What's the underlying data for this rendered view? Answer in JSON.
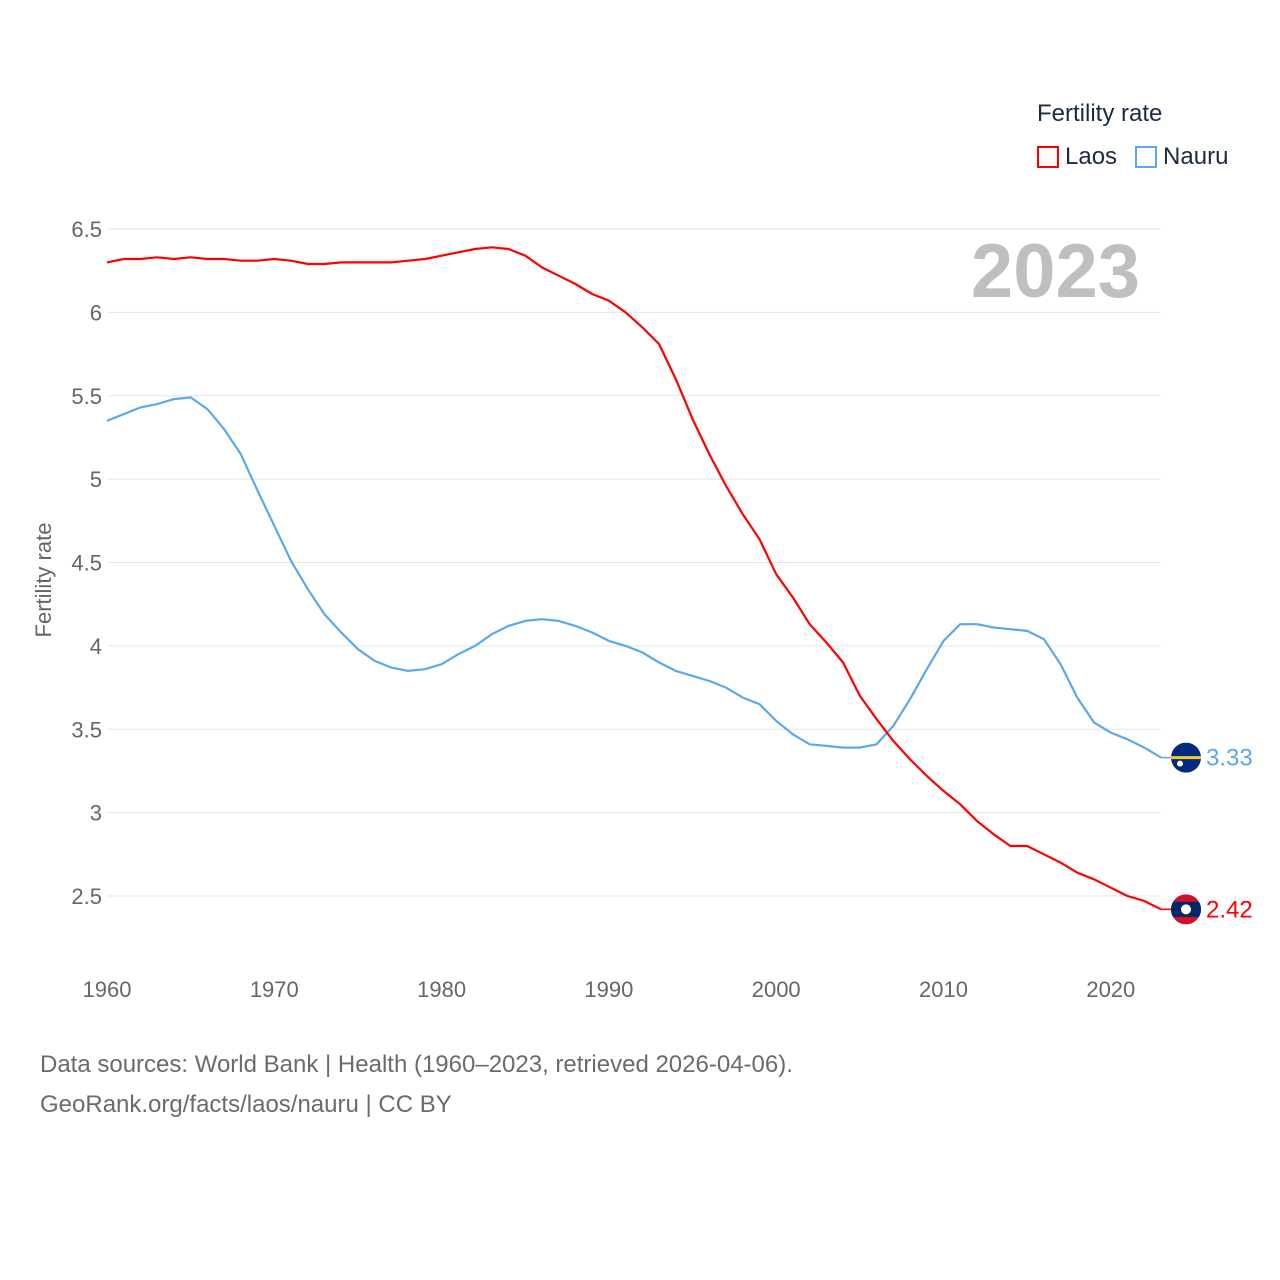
{
  "chart_data": {
    "type": "line",
    "title": "Fertility rate",
    "xlabel": "",
    "ylabel": "Fertility rate",
    "xlim": [
      1960,
      2023
    ],
    "ylim": [
      2.25,
      6.5
    ],
    "yticks": [
      "2.5",
      "3",
      "3.5",
      "4",
      "4.5",
      "5",
      "5.5",
      "6",
      "6.5"
    ],
    "xticks": [
      "1960",
      "1970",
      "1980",
      "1990",
      "2000",
      "2010",
      "2020"
    ],
    "grid": true,
    "legend_position": "top-right",
    "current_year": "2023",
    "x": [
      1960,
      1961,
      1962,
      1963,
      1964,
      1965,
      1966,
      1967,
      1968,
      1969,
      1970,
      1971,
      1972,
      1973,
      1974,
      1975,
      1976,
      1977,
      1978,
      1979,
      1980,
      1981,
      1982,
      1983,
      1984,
      1985,
      1986,
      1987,
      1988,
      1989,
      1990,
      1991,
      1992,
      1993,
      1994,
      1995,
      1996,
      1997,
      1998,
      1999,
      2000,
      2001,
      2002,
      2003,
      2004,
      2005,
      2006,
      2007,
      2008,
      2009,
      2010,
      2011,
      2012,
      2013,
      2014,
      2015,
      2016,
      2017,
      2018,
      2019,
      2020,
      2021,
      2022,
      2023
    ],
    "series": [
      {
        "name": "Laos",
        "color": "#ff0000",
        "end_label": "2.42",
        "values": [
          6.3,
          6.32,
          6.32,
          6.33,
          6.32,
          6.33,
          6.32,
          6.32,
          6.31,
          6.31,
          6.32,
          6.31,
          6.29,
          6.29,
          6.3,
          6.3,
          6.3,
          6.3,
          6.31,
          6.32,
          6.34,
          6.36,
          6.38,
          6.39,
          6.38,
          6.34,
          6.27,
          6.22,
          6.17,
          6.11,
          6.07,
          6.0,
          5.91,
          5.81,
          5.6,
          5.36,
          5.15,
          4.96,
          4.79,
          4.64,
          4.43,
          4.29,
          4.13,
          4.02,
          3.9,
          3.7,
          3.56,
          3.43,
          3.32,
          3.22,
          3.13,
          3.05,
          2.95,
          2.87,
          2.8,
          2.8,
          2.75,
          2.7,
          2.64,
          2.6,
          2.55,
          2.5,
          2.47,
          2.42
        ]
      },
      {
        "name": "Nauru",
        "color": "#5ba8f0",
        "end_label": "3.33",
        "values": [
          5.35,
          5.39,
          5.43,
          5.45,
          5.48,
          5.49,
          5.42,
          5.3,
          5.15,
          4.93,
          4.72,
          4.51,
          4.34,
          4.19,
          4.08,
          3.98,
          3.91,
          3.87,
          3.85,
          3.86,
          3.89,
          3.95,
          4.0,
          4.07,
          4.12,
          4.15,
          4.16,
          4.15,
          4.12,
          4.08,
          4.03,
          4.0,
          3.96,
          3.9,
          3.85,
          3.82,
          3.79,
          3.75,
          3.69,
          3.65,
          3.55,
          3.47,
          3.41,
          3.4,
          3.39,
          3.39,
          3.41,
          3.52,
          3.68,
          3.86,
          4.03,
          4.13,
          4.13,
          4.11,
          4.1,
          4.09,
          4.04,
          3.89,
          3.69,
          3.54,
          3.48,
          3.44,
          3.39,
          3.33
        ]
      }
    ]
  },
  "footer": {
    "line1": "Data sources: World Bank | Health (1960–2023, retrieved 2026-04-06).",
    "line2": "GeoRank.org/facts/laos/nauru | CC BY"
  }
}
